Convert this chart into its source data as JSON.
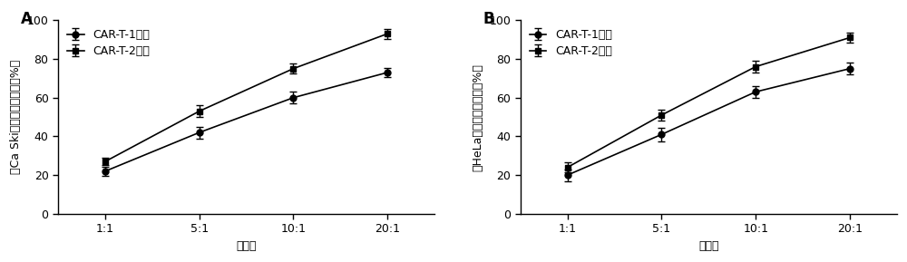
{
  "panel_A": {
    "title": "A",
    "xlabel": "效靶比",
    "ylabel": "对Ca Ski细胞的杀伤效率（%）",
    "xtick_labels": [
      "1:1",
      "5:1",
      "10:1",
      "20:1"
    ],
    "xlim": [
      0.5,
      4.5
    ],
    "ylim": [
      0,
      100
    ],
    "yticks": [
      0,
      20,
      40,
      60,
      80,
      100
    ],
    "series": [
      {
        "label": "CAR-T-1细胞",
        "values": [
          22,
          42,
          60,
          73
        ],
        "errors": [
          2.5,
          3.0,
          3.0,
          2.5
        ],
        "marker": "o",
        "color": "#000000"
      },
      {
        "label": "CAR-T-2细胞",
        "values": [
          27,
          53,
          75,
          93
        ],
        "errors": [
          2.0,
          3.0,
          2.5,
          2.5
        ],
        "marker": "s",
        "color": "#000000"
      }
    ]
  },
  "panel_B": {
    "title": "B",
    "xlabel": "效靶比",
    "ylabel": "对HeLa细胞的杀伤效率（%）",
    "xtick_labels": [
      "1:1",
      "5:1",
      "10:1",
      "20:1"
    ],
    "xlim": [
      0.5,
      4.5
    ],
    "ylim": [
      0,
      100
    ],
    "yticks": [
      0,
      20,
      40,
      60,
      80,
      100
    ],
    "series": [
      {
        "label": "CAR-T-1细胞",
        "values": [
          20,
          41,
          63,
          75
        ],
        "errors": [
          3.0,
          3.5,
          3.0,
          3.0
        ],
        "marker": "o",
        "color": "#000000"
      },
      {
        "label": "CAR-T-2细胞",
        "values": [
          24,
          51,
          76,
          91
        ],
        "errors": [
          2.5,
          3.0,
          3.0,
          2.5
        ],
        "marker": "s",
        "color": "#000000"
      }
    ]
  },
  "background_color": "#ffffff",
  "line_color": "#000000",
  "fontsize_label": 9,
  "fontsize_tick": 9,
  "fontsize_legend": 9,
  "fontsize_panel_label": 12
}
